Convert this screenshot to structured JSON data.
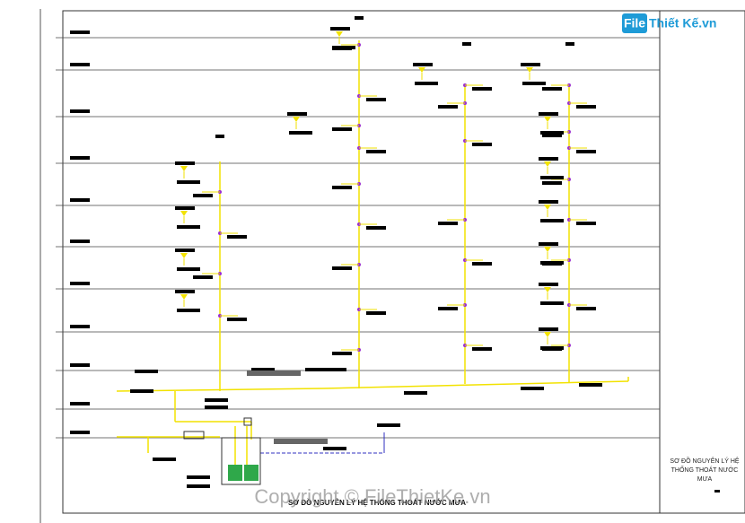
{
  "logo": {
    "brand": "File",
    "rest": "Thiết Kế.vn"
  },
  "title_block": {
    "lines": [
      "SƠ ĐỒ NGUYÊN LÝ HỆ",
      "THỐNG THOÁT NƯỚC",
      "MƯA"
    ]
  },
  "caption": "SƠ ĐỒ NGUYÊN LÝ HỆ THỐNG THOÁT NƯỚC MƯA",
  "watermark": "Copyright © FileThietKe.vn"
}
